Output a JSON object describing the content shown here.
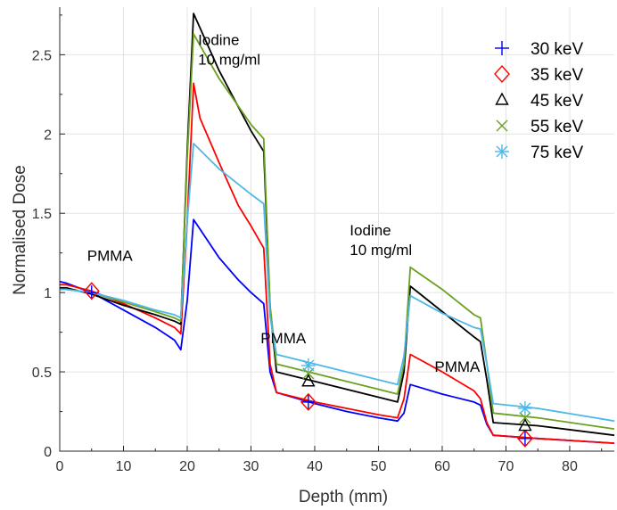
{
  "chart_data": {
    "type": "line",
    "title": "",
    "xlabel": "Depth (mm)",
    "ylabel": "Normalised Dose",
    "xlim": [
      0,
      87
    ],
    "ylim": [
      0,
      2.8
    ],
    "xticks": [
      0,
      10,
      20,
      30,
      40,
      50,
      60,
      70,
      80
    ],
    "yticks": [
      0,
      0.5,
      1,
      1.5,
      2,
      2.5
    ],
    "xtick_labels": [
      "0",
      "10",
      "20",
      "30",
      "40",
      "50",
      "60",
      "70",
      "80"
    ],
    "ytick_labels": [
      "0",
      "0.5",
      "1",
      "1.5",
      "2",
      "2.5"
    ],
    "grid": true,
    "legend_position": "top-right",
    "annotations": [
      {
        "lines": [
          "PMMA"
        ],
        "x": 4.3,
        "y": 1.2
      },
      {
        "lines": [
          "Iodine",
          "10 mg/ml"
        ],
        "x": 21.7,
        "y": 2.56
      },
      {
        "lines": [
          "PMMA"
        ],
        "x": 31.5,
        "y": 0.68
      },
      {
        "lines": [
          "Iodine",
          "10 mg/ml"
        ],
        "x": 45.5,
        "y": 1.36
      },
      {
        "lines": [
          "PMMA"
        ],
        "x": 58.8,
        "y": 0.5
      }
    ],
    "series": [
      {
        "name": "30 keV",
        "color": "#0000ff",
        "marker": "plus",
        "x": [
          0,
          1,
          5,
          10,
          15,
          18,
          19,
          20,
          21,
          22,
          25,
          28,
          30,
          32,
          33,
          34,
          40,
          45,
          50,
          53,
          54,
          55,
          60,
          65,
          66,
          67,
          68,
          75,
          87
        ],
        "y": [
          1.07,
          1.06,
          1.0,
          0.89,
          0.78,
          0.7,
          0.64,
          0.95,
          1.46,
          1.4,
          1.22,
          1.08,
          1.0,
          0.93,
          0.5,
          0.37,
          0.3,
          0.25,
          0.21,
          0.19,
          0.24,
          0.42,
          0.36,
          0.31,
          0.29,
          0.17,
          0.1,
          0.08,
          0.05
        ],
        "markers": [
          {
            "x": 5,
            "y": 1.0
          },
          {
            "x": 39,
            "y": 0.31
          },
          {
            "x": 73,
            "y": 0.08
          }
        ]
      },
      {
        "name": "35 keV",
        "color": "#ff0000",
        "marker": "diamond",
        "x": [
          0,
          1,
          5,
          10,
          15,
          18,
          19,
          20,
          21,
          22,
          25,
          28,
          30,
          32,
          33,
          34,
          40,
          45,
          50,
          53,
          54,
          55,
          60,
          65,
          66,
          67,
          68,
          75,
          87
        ],
        "y": [
          1.05,
          1.05,
          1.01,
          0.93,
          0.84,
          0.78,
          0.74,
          1.45,
          2.32,
          2.1,
          1.82,
          1.55,
          1.42,
          1.28,
          0.55,
          0.37,
          0.31,
          0.27,
          0.23,
          0.21,
          0.33,
          0.61,
          0.5,
          0.38,
          0.33,
          0.18,
          0.1,
          0.08,
          0.05
        ],
        "markers": [
          {
            "x": 5,
            "y": 1.01
          },
          {
            "x": 39,
            "y": 0.31
          },
          {
            "x": 73,
            "y": 0.08
          }
        ]
      },
      {
        "name": "45 keV",
        "color": "#000000",
        "marker": "triangle",
        "x": [
          0,
          1,
          5,
          10,
          15,
          18,
          19,
          20,
          21,
          25,
          30,
          32,
          33,
          34,
          40,
          45,
          50,
          53,
          54,
          55,
          60,
          65,
          66,
          67,
          68,
          75,
          87
        ],
        "y": [
          1.03,
          1.03,
          0.99,
          0.92,
          0.86,
          0.82,
          0.8,
          1.9,
          2.76,
          2.4,
          2.02,
          1.89,
          0.9,
          0.5,
          0.44,
          0.39,
          0.34,
          0.31,
          0.5,
          1.04,
          0.88,
          0.72,
          0.69,
          0.45,
          0.18,
          0.16,
          0.1
        ],
        "markers": [
          {
            "x": 39,
            "y": 0.44
          },
          {
            "x": 73,
            "y": 0.16
          }
        ]
      },
      {
        "name": "55 keV",
        "color": "#6aa121",
        "marker": "x",
        "x": [
          0,
          1,
          5,
          10,
          15,
          18,
          19,
          20,
          21,
          25,
          30,
          32,
          33,
          34,
          40,
          45,
          50,
          53,
          54,
          55,
          60,
          65,
          66,
          67,
          68,
          75,
          87
        ],
        "y": [
          1.02,
          1.02,
          1.0,
          0.94,
          0.88,
          0.84,
          0.82,
          1.85,
          2.63,
          2.35,
          2.06,
          1.97,
          0.92,
          0.55,
          0.49,
          0.44,
          0.39,
          0.36,
          0.55,
          1.16,
          1.02,
          0.86,
          0.84,
          0.55,
          0.24,
          0.21,
          0.14
        ],
        "markers": [
          {
            "x": 39,
            "y": 0.49
          },
          {
            "x": 73,
            "y": 0.21
          }
        ]
      },
      {
        "name": "75 keV",
        "color": "#4db8e8",
        "marker": "star",
        "x": [
          0,
          1,
          5,
          10,
          15,
          18,
          19,
          20,
          21,
          25,
          30,
          32,
          33,
          34,
          40,
          45,
          50,
          53,
          54,
          55,
          60,
          65,
          66,
          67,
          68,
          75,
          87
        ],
        "y": [
          1.02,
          1.02,
          1.0,
          0.95,
          0.89,
          0.86,
          0.84,
          1.45,
          1.94,
          1.78,
          1.62,
          1.56,
          0.85,
          0.61,
          0.55,
          0.5,
          0.45,
          0.42,
          0.6,
          0.98,
          0.87,
          0.78,
          0.77,
          0.55,
          0.3,
          0.27,
          0.19
        ],
        "markers": [
          {
            "x": 39,
            "y": 0.54
          },
          {
            "x": 73,
            "y": 0.27
          }
        ]
      }
    ]
  }
}
